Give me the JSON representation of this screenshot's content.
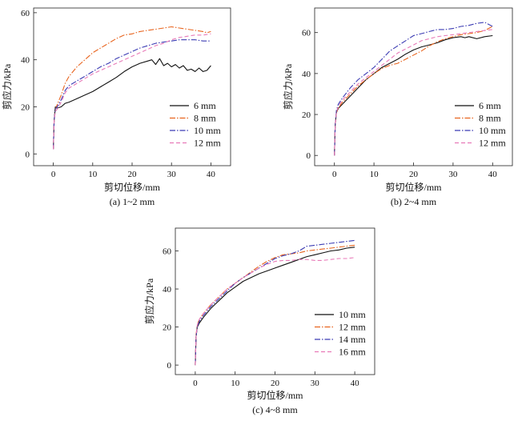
{
  "chart_data": [
    {
      "type": "line",
      "caption": "(a) 1~2 mm",
      "xlabel": "剪切位移/mm",
      "ylabel": "剪应力/kPa",
      "xlim": [
        -5,
        45
      ],
      "ylim": [
        -5,
        62
      ],
      "xticks": [
        0,
        10,
        20,
        30,
        40
      ],
      "yticks": [
        0,
        20,
        40,
        60
      ],
      "legend_position": "lower-right",
      "series": [
        {
          "name": "6 mm",
          "color": "#111111",
          "dash": "solid",
          "x": [
            0,
            0.2,
            0.5,
            1,
            2,
            3,
            4,
            6,
            8,
            10,
            12,
            14,
            16,
            18,
            20,
            22,
            24,
            25,
            26,
            27,
            28,
            29,
            30,
            31,
            32,
            33,
            34,
            35,
            36,
            37,
            38,
            39,
            40
          ],
          "y": [
            2,
            14,
            20,
            19.5,
            20,
            21.5,
            22,
            23.5,
            25,
            26.5,
            28.5,
            30.5,
            32.5,
            35,
            37,
            38.5,
            39.5,
            40,
            38,
            40.5,
            37.5,
            38.5,
            37,
            38,
            36.5,
            37.5,
            35.5,
            36,
            35,
            36.5,
            35,
            35.5,
            37.5
          ]
        },
        {
          "name": "8 mm",
          "color": "#e8641e",
          "dash": "dashdot",
          "x": [
            0,
            0.2,
            0.5,
            1,
            2,
            3,
            4,
            6,
            8,
            10,
            12,
            14,
            16,
            18,
            20,
            22,
            24,
            26,
            28,
            30,
            32,
            34,
            36,
            38,
            39,
            40
          ],
          "y": [
            2,
            14,
            19,
            21,
            25,
            30,
            33,
            37,
            40,
            43,
            45,
            47,
            49,
            50.5,
            51,
            52,
            52.5,
            53,
            53.5,
            54,
            53.5,
            53,
            52.5,
            52,
            51.5,
            52
          ]
        },
        {
          "name": "10 mm",
          "color": "#3b3bb3",
          "dash": "dashdot",
          "x": [
            0,
            0.2,
            0.5,
            1,
            2,
            3,
            4,
            6,
            8,
            10,
            12,
            14,
            16,
            18,
            20,
            22,
            24,
            26,
            28,
            30,
            32,
            34,
            36,
            38,
            40
          ],
          "y": [
            2,
            14,
            19,
            20,
            23,
            27,
            29,
            31,
            33,
            35,
            37,
            38.5,
            40.5,
            42,
            43.5,
            45,
            46,
            47,
            47.5,
            48,
            48.5,
            48.5,
            48.5,
            48,
            48
          ]
        },
        {
          "name": "12 mm",
          "color": "#e87ab8",
          "dash": "dashed",
          "x": [
            0,
            0.2,
            0.5,
            1,
            2,
            3,
            4,
            6,
            8,
            10,
            12,
            14,
            16,
            18,
            20,
            22,
            24,
            26,
            28,
            30,
            32,
            34,
            36,
            38,
            40
          ],
          "y": [
            2,
            14,
            18,
            19,
            22,
            26,
            28,
            30,
            32,
            34,
            35.5,
            37,
            38.5,
            40,
            41.5,
            43,
            44.5,
            46,
            47,
            48.5,
            49.5,
            50,
            50.5,
            50.5,
            51
          ]
        }
      ]
    },
    {
      "type": "line",
      "caption": "(b) 2~4 mm",
      "xlabel": "剪切位移/mm",
      "ylabel": "剪应力/kPa",
      "xlim": [
        -5,
        45
      ],
      "ylim": [
        -5,
        72
      ],
      "xticks": [
        0,
        10,
        20,
        30,
        40
      ],
      "yticks": [
        0,
        20,
        40,
        60
      ],
      "legend_position": "lower-right",
      "series": [
        {
          "name": "6 mm",
          "color": "#111111",
          "dash": "solid",
          "x": [
            0,
            0.2,
            0.5,
            1,
            2,
            4,
            6,
            8,
            10,
            12,
            14,
            16,
            18,
            20,
            22,
            24,
            26,
            28,
            30,
            32,
            33,
            34,
            36,
            38,
            40
          ],
          "y": [
            0,
            15,
            21,
            23,
            25,
            29,
            33,
            37,
            40,
            43,
            45,
            47,
            49.5,
            51.5,
            53,
            54,
            55,
            56.5,
            57.5,
            58,
            57.5,
            58,
            57,
            58,
            58.5
          ]
        },
        {
          "name": "8 mm",
          "color": "#e8641e",
          "dash": "dashdot",
          "x": [
            0,
            0.2,
            0.5,
            1,
            2,
            4,
            6,
            8,
            10,
            12,
            14,
            16,
            18,
            20,
            22,
            24,
            26,
            28,
            30,
            32,
            34,
            36,
            38,
            40
          ],
          "y": [
            0,
            15,
            21,
            23,
            26,
            30,
            34,
            37,
            40,
            42.5,
            44,
            45,
            47,
            49,
            51,
            53.5,
            55.5,
            57,
            58,
            59,
            59.5,
            60,
            61,
            63
          ]
        },
        {
          "name": "10 mm",
          "color": "#3b3bb3",
          "dash": "dashdot",
          "x": [
            0,
            0.2,
            0.5,
            1,
            2,
            4,
            6,
            8,
            10,
            12,
            14,
            16,
            18,
            20,
            22,
            24,
            26,
            28,
            30,
            32,
            34,
            36,
            38,
            39,
            40
          ],
          "y": [
            0,
            15,
            22,
            25,
            28,
            33,
            37,
            40,
            43,
            47,
            51,
            53.5,
            56,
            58.5,
            59.5,
            60.5,
            61.5,
            61.5,
            62,
            63,
            63.5,
            64.5,
            65,
            64,
            63
          ]
        },
        {
          "name": "12 mm",
          "color": "#e87ab8",
          "dash": "dashed",
          "x": [
            0,
            0.2,
            0.5,
            1,
            2,
            4,
            6,
            8,
            10,
            12,
            14,
            16,
            18,
            20,
            22,
            24,
            26,
            28,
            30,
            32,
            34,
            36,
            38,
            40
          ],
          "y": [
            0,
            15,
            21,
            24,
            27,
            31,
            35,
            38,
            41,
            44,
            47,
            50,
            52,
            54,
            56,
            57,
            58,
            58.5,
            59,
            59.5,
            60,
            60.5,
            61,
            61.5
          ]
        }
      ]
    },
    {
      "type": "line",
      "caption": "(c) 4~8 mm",
      "xlabel": "剪切位移/mm",
      "ylabel": "剪应力/kPa",
      "xlim": [
        -5,
        45
      ],
      "ylim": [
        -5,
        72
      ],
      "xticks": [
        0,
        10,
        20,
        30,
        40
      ],
      "yticks": [
        0,
        20,
        40,
        60
      ],
      "legend_position": "lower-right",
      "series": [
        {
          "name": "10 mm",
          "color": "#111111",
          "dash": "solid",
          "x": [
            0,
            0.2,
            0.5,
            1,
            2,
            4,
            6,
            8,
            10,
            12,
            14,
            16,
            18,
            20,
            22,
            24,
            26,
            28,
            30,
            32,
            34,
            36,
            38,
            40
          ],
          "y": [
            0,
            15,
            20,
            22,
            25,
            30,
            34,
            38,
            41,
            44,
            46,
            48,
            49.5,
            51,
            52.5,
            54,
            55.5,
            57,
            58,
            59,
            60,
            60.5,
            61.5,
            62
          ]
        },
        {
          "name": "12 mm",
          "color": "#e8641e",
          "dash": "dashdot",
          "x": [
            0,
            0.2,
            0.5,
            1,
            2,
            4,
            6,
            8,
            10,
            12,
            14,
            16,
            18,
            20,
            22,
            24,
            26,
            28,
            30,
            32,
            34,
            36,
            38,
            40
          ],
          "y": [
            0,
            16,
            21,
            24,
            27,
            32,
            36,
            40,
            43,
            46,
            49,
            52,
            54.5,
            56.5,
            58,
            58.5,
            59,
            60,
            60.5,
            61,
            61.5,
            62,
            62.5,
            63
          ]
        },
        {
          "name": "14 mm",
          "color": "#3b3bb3",
          "dash": "dashdot",
          "x": [
            0,
            0.2,
            0.5,
            1,
            2,
            4,
            6,
            8,
            10,
            12,
            14,
            16,
            18,
            20,
            22,
            24,
            26,
            28,
            30,
            32,
            34,
            36,
            38,
            40
          ],
          "y": [
            0,
            15,
            20,
            23,
            26,
            31,
            35,
            39,
            43,
            46,
            48.5,
            51,
            53.5,
            56,
            57.5,
            58.5,
            60,
            62.5,
            63,
            63.5,
            64,
            64.5,
            65,
            65.5
          ]
        },
        {
          "name": "16 mm",
          "color": "#e87ab8",
          "dash": "dashed",
          "x": [
            0,
            0.2,
            0.5,
            1,
            2,
            4,
            6,
            8,
            10,
            12,
            14,
            16,
            18,
            20,
            22,
            24,
            26,
            28,
            30,
            32,
            34,
            36,
            38,
            40
          ],
          "y": [
            0,
            15,
            21,
            24,
            27,
            32,
            36,
            40,
            43,
            46,
            48.5,
            51,
            53,
            54.5,
            55,
            55,
            55.5,
            55.5,
            55,
            55,
            55.5,
            56,
            56,
            56.5
          ]
        }
      ]
    }
  ]
}
